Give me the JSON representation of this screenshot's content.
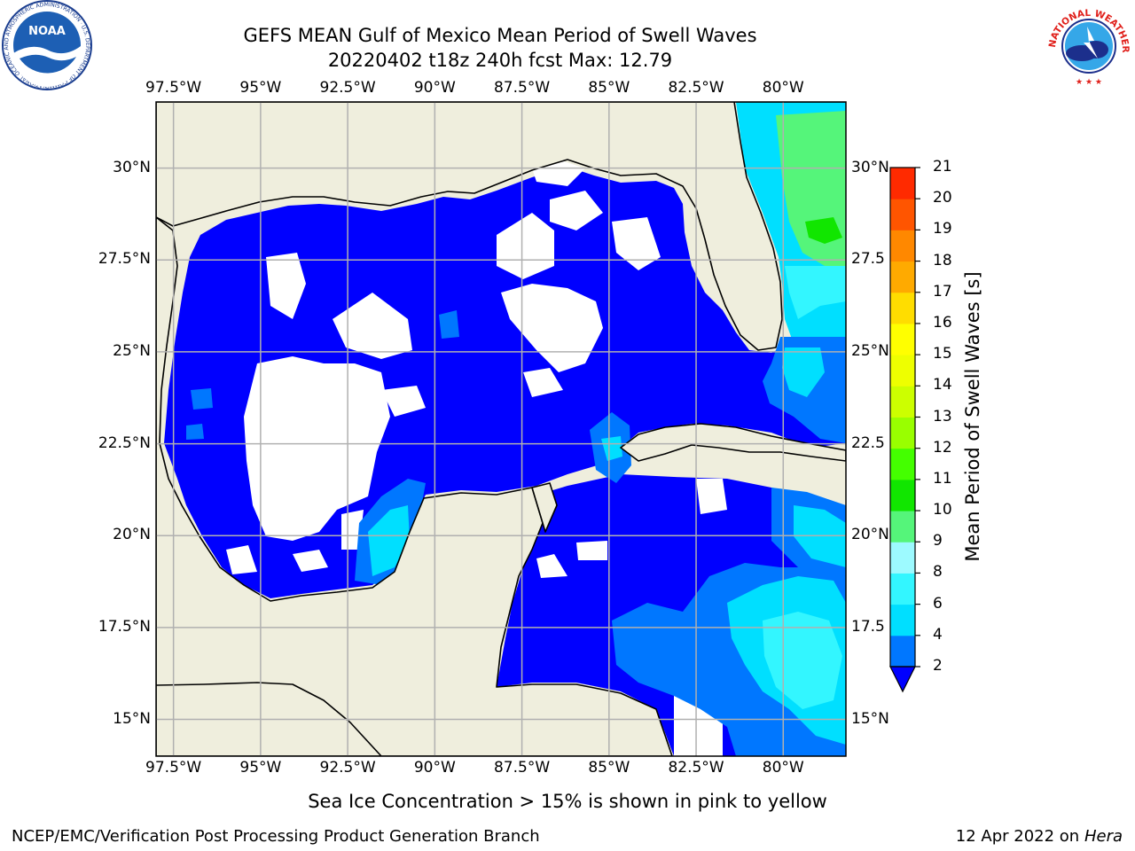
{
  "title": {
    "line1": "GEFS MEAN Gulf of Mexico Mean Period of Swell Waves",
    "line2": "20220402 t18z 240h fcst   Max: 12.79"
  },
  "map": {
    "lon_range": [
      -98,
      -78.2
    ],
    "lat_range": [
      14.0,
      31.8
    ],
    "lon_ticks": [
      {
        "value": -97.5,
        "label": "97.5°W"
      },
      {
        "value": -95,
        "label": "95°W"
      },
      {
        "value": -92.5,
        "label": "92.5°W"
      },
      {
        "value": -90,
        "label": "90°W"
      },
      {
        "value": -87.5,
        "label": "87.5°W"
      },
      {
        "value": -85,
        "label": "85°W"
      },
      {
        "value": -82.5,
        "label": "82.5°W"
      },
      {
        "value": -80,
        "label": "80°W"
      }
    ],
    "lat_ticks": [
      {
        "value": 30,
        "label": "30°N",
        "right_label": "30°N"
      },
      {
        "value": 27.5,
        "label": "27.5°N",
        "right_label": "27.5"
      },
      {
        "value": 25,
        "label": "25°N",
        "right_label": "25°N"
      },
      {
        "value": 22.5,
        "label": "22.5°N",
        "right_label": "22.5"
      },
      {
        "value": 20,
        "label": "20°N",
        "right_label": "20°N"
      },
      {
        "value": 17.5,
        "label": "17.5°N",
        "right_label": "17.5"
      },
      {
        "value": 15,
        "label": "15°N",
        "right_label": "15°N"
      }
    ],
    "colors": {
      "land": "#efeedd",
      "grid": "#b0b0b0",
      "coast": "#000000",
      "no_data": "#ffffff"
    }
  },
  "colorbar": {
    "label": "Mean Period of Swell Waves [s]",
    "under_color": "#0000ff",
    "levels": [
      {
        "value": 2,
        "label": "2",
        "color": "#0077ff"
      },
      {
        "value": 4,
        "label": "4",
        "color": "#00dfff"
      },
      {
        "value": 6,
        "label": "6",
        "color": "#33f6ff"
      },
      {
        "value": 8,
        "label": "8",
        "color": "#9dfaff"
      },
      {
        "value": 9,
        "label": "9",
        "color": "#55f57a"
      },
      {
        "value": 10,
        "label": "10",
        "color": "#11e600"
      },
      {
        "value": 11,
        "label": "11",
        "color": "#44ff00"
      },
      {
        "value": 12,
        "label": "12",
        "color": "#99ff00"
      },
      {
        "value": 13,
        "label": "13",
        "color": "#ccff00"
      },
      {
        "value": 14,
        "label": "14",
        "color": "#eeff00"
      },
      {
        "value": 15,
        "label": "15",
        "color": "#ffff00"
      },
      {
        "value": 16,
        "label": "16",
        "color": "#ffdd00"
      },
      {
        "value": 17,
        "label": "17",
        "color": "#ffaa00"
      },
      {
        "value": 18,
        "label": "18",
        "color": "#ff8800"
      },
      {
        "value": 19,
        "label": "19",
        "color": "#ff5500"
      },
      {
        "value": 20,
        "label": "20",
        "color": "#ff2a00"
      },
      {
        "value": 21,
        "label": "21",
        "color": "#ff0000"
      }
    ]
  },
  "logos": {
    "left_icon": "noaa-logo-icon",
    "left_text": "NOAA",
    "left_ring_text": "NATIONAL OCEANIC AND ATMOSPHERIC ADMINISTRATION · U.S. DEPARTMENT OF COMMERCE",
    "right_icon": "nws-logo-icon",
    "right_ring_text": "NATIONAL WEATHER SERVICE"
  },
  "footer": {
    "note": "Sea Ice Concentration > 15% is shown in pink to yellow",
    "left": "NCEP/EMC/Verification Post Processing Product Generation Branch",
    "date": "12 Apr 2022 on ",
    "machine": "Hera"
  }
}
